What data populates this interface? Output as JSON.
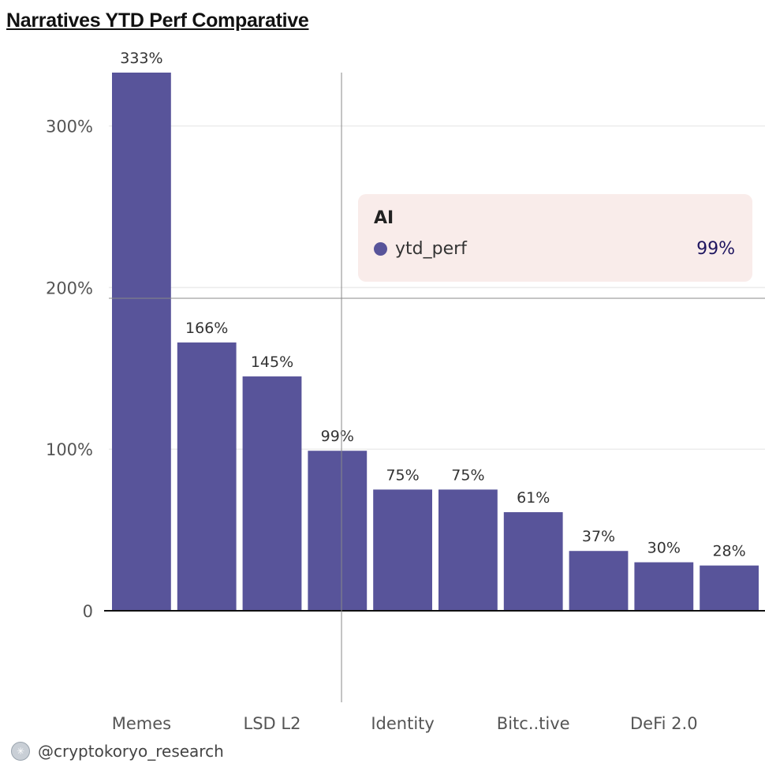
{
  "title": "Narratives YTD Perf Comparative",
  "chart_data": {
    "type": "bar",
    "categories": [
      "Memes",
      "",
      "LSD L2",
      "AI",
      "Identity",
      "",
      "Bitc..tive",
      "",
      "DeFi 2.0",
      ""
    ],
    "series": [
      {
        "name": "ytd_perf",
        "values": [
          333,
          166,
          145,
          99,
          75,
          75,
          61,
          37,
          30,
          28
        ]
      }
    ],
    "data_labels": [
      "333%",
      "166%",
      "145%",
      "99%",
      "75%",
      "75%",
      "61%",
      "37%",
      "30%",
      "28%"
    ],
    "y_ticks": [
      0,
      100,
      200,
      300
    ],
    "y_tick_labels": [
      "0",
      "100%",
      "200%",
      "300%"
    ],
    "ylim": [
      0,
      333
    ],
    "grid": true,
    "bar_color": "#58549a"
  },
  "tooltip": {
    "title": "AI",
    "series_name": "ytd_perf",
    "value": "99%",
    "dot_color": "#58549a"
  },
  "footer": {
    "handle": "@cryptokoryo_research",
    "icon": "avatar-icon"
  }
}
